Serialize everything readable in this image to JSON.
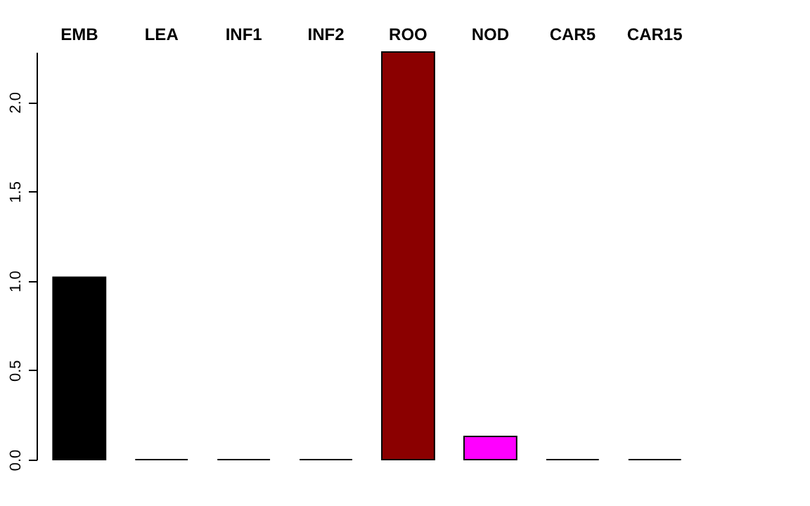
{
  "chart_data": {
    "type": "bar",
    "categories": [
      "EMB",
      "LEA",
      "INF1",
      "INF2",
      "ROO",
      "NOD",
      "CAR5",
      "CAR15"
    ],
    "values": [
      1.02,
      0,
      0,
      0,
      2.28,
      0.13,
      0,
      0
    ],
    "colors": [
      "#000000",
      "#000000",
      "#000000",
      "#000000",
      "#8b0000",
      "#ff00ff",
      "#000000",
      "#000000"
    ],
    "ylim": [
      0,
      2.28
    ],
    "yticks": [
      {
        "value": 0,
        "label": "0.0"
      },
      {
        "value": 0.5,
        "label": "0.5"
      },
      {
        "value": 1,
        "label": "1.0"
      },
      {
        "value": 1.5,
        "label": "1.5"
      },
      {
        "value": 2,
        "label": "2.0"
      }
    ],
    "grid": false,
    "legend": false
  }
}
